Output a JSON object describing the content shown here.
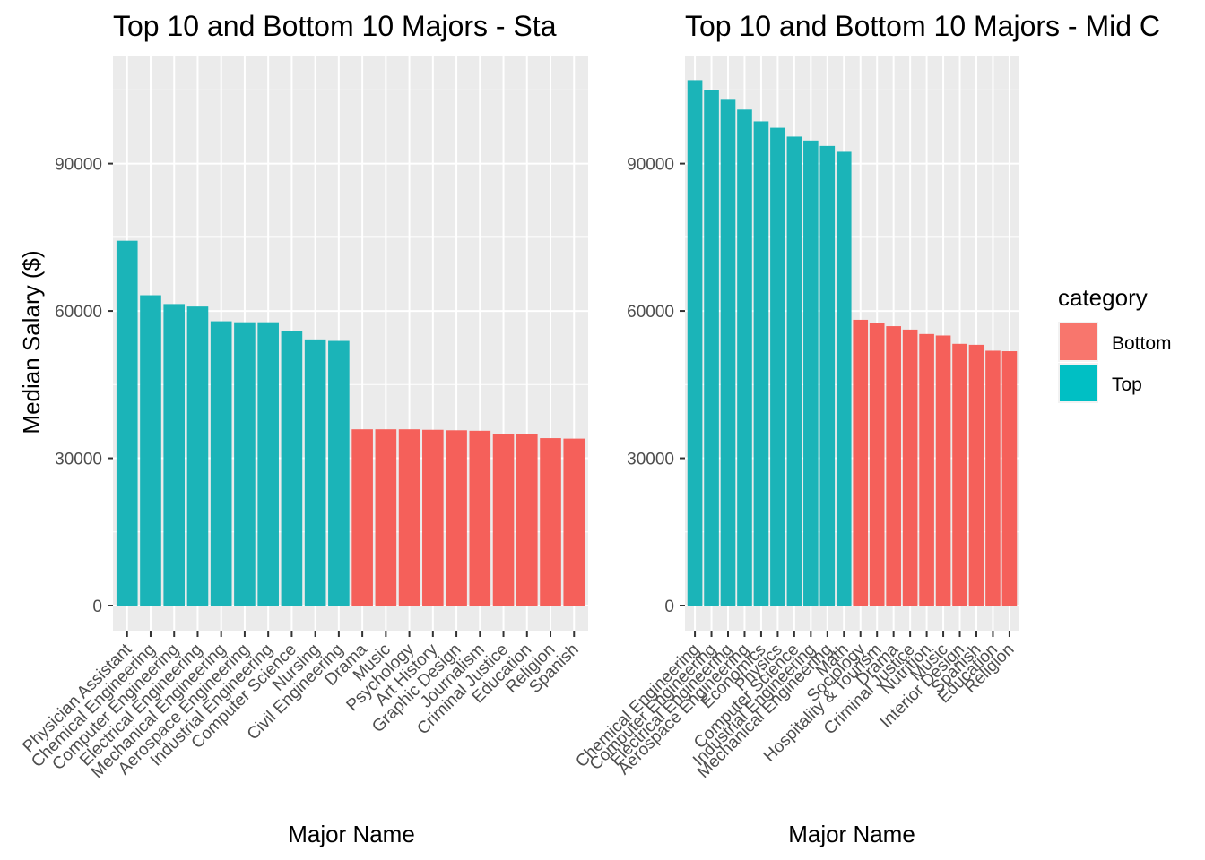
{
  "chart_data": [
    {
      "type": "bar",
      "title": "Top 10 and Bottom 10 Majors - Sta",
      "xlabel": "Major Name",
      "ylabel": "Median Salary ($)",
      "ylim": [
        0,
        112000
      ],
      "yticks": [
        0,
        30000,
        60000,
        90000
      ],
      "ytick_labels": [
        "0",
        "30000",
        "60000",
        "90000"
      ],
      "grid": true,
      "categories": [
        "Physician Assistant",
        "Chemical Engineering",
        "Computer Engineering",
        "Electrical Engineering",
        "Mechanical Engineering",
        "Aerospace Engineering",
        "Industrial Engineering",
        "Computer Science",
        "Nursing",
        "Civil Engineering",
        "Drama",
        "Music",
        "Psychology",
        "Art History",
        "Graphic Design",
        "Journalism",
        "Criminal Justice",
        "Education",
        "Religion",
        "Spanish"
      ],
      "values": [
        74300,
        63200,
        61400,
        60900,
        57900,
        57700,
        57700,
        56000,
        54200,
        53900,
        35900,
        35900,
        35900,
        35800,
        35700,
        35600,
        35000,
        34900,
        34100,
        34000
      ],
      "category_group": [
        "Top",
        "Top",
        "Top",
        "Top",
        "Top",
        "Top",
        "Top",
        "Top",
        "Top",
        "Top",
        "Bottom",
        "Bottom",
        "Bottom",
        "Bottom",
        "Bottom",
        "Bottom",
        "Bottom",
        "Bottom",
        "Bottom",
        "Bottom"
      ]
    },
    {
      "type": "bar",
      "title": "Top 10 and Bottom 10 Majors - Mid C",
      "xlabel": "Major Name",
      "ylabel": "",
      "ylim": [
        0,
        112000
      ],
      "yticks": [
        0,
        30000,
        60000,
        90000
      ],
      "ytick_labels": [
        "0",
        "30000",
        "60000",
        "90000"
      ],
      "grid": true,
      "categories": [
        "Chemical Engineering",
        "Computer Engineering",
        "Electrical Engineering",
        "Aerospace Engineering",
        "Economics",
        "Physics",
        "Computer Science",
        "Industrial Engineering",
        "Mechanical Engineering",
        "Math",
        "Sociology",
        "Hospitality & Tourism",
        "Drama",
        "Criminal Justice",
        "Nutrition",
        "Music",
        "Interior Design",
        "Spanish",
        "Education",
        "Religion"
      ],
      "values": [
        107000,
        105000,
        103000,
        101000,
        98600,
        97300,
        95500,
        94700,
        93600,
        92400,
        58200,
        57600,
        56900,
        56200,
        55300,
        55000,
        53300,
        53100,
        51900,
        51800
      ],
      "category_group": [
        "Top",
        "Top",
        "Top",
        "Top",
        "Top",
        "Top",
        "Top",
        "Top",
        "Top",
        "Top",
        "Bottom",
        "Bottom",
        "Bottom",
        "Bottom",
        "Bottom",
        "Bottom",
        "Bottom",
        "Bottom",
        "Bottom",
        "Bottom"
      ]
    }
  ],
  "legend": {
    "title": "category",
    "placement": "right",
    "items": [
      {
        "label": "Bottom",
        "color": "#F8766D"
      },
      {
        "label": "Top",
        "color": "#00BFC4"
      }
    ]
  },
  "colors": {
    "Top": "#1BB4B8",
    "Bottom": "#F5605A",
    "panel_background": "#EBEBEB",
    "grid": "#FFFFFF"
  }
}
